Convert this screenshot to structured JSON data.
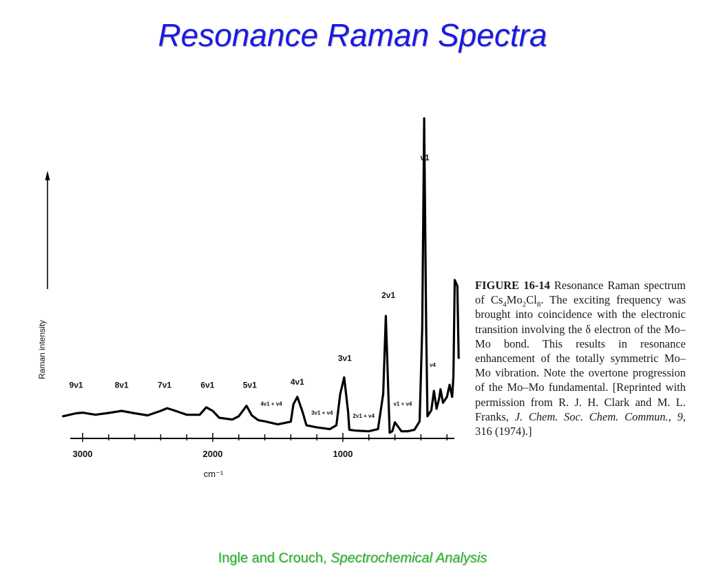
{
  "slide": {
    "title": "Resonance Raman Spectra",
    "footer_authors": "Ingle and Crouch, ",
    "footer_book": "Spectrochemical Analysis"
  },
  "caption": {
    "figure_label": "FIGURE 16-14",
    "text_1": "Resonance Raman spectrum of Cs",
    "sub_1": "4",
    "text_2": "Mo",
    "sub_2": "2",
    "text_3": "Cl",
    "sub_3": "8",
    "text_4": ". The exciting frequency was brought into coincidence with the electronic transition involving the δ electron of the Mo–Mo bond. This results in resonance enhancement of the totally symmetric Mo–Mo vibration. Note the overtone progression of the Mo–Mo fundamental. [Reprinted with permission from R. J. H. Clark and M. L. Franks, ",
    "journal": "J. Chem. Soc. Chem. Commun., 9,",
    "text_5": " 316 (1974).]"
  },
  "chart_data": {
    "type": "line",
    "title": "",
    "xlabel": "cm⁻¹",
    "ylabel": "Raman intensity",
    "x_tick_labels": [
      "3000",
      "2000",
      "1000"
    ],
    "x_ticks": [
      3000,
      2000,
      1000
    ],
    "xlim": [
      3150,
      100
    ],
    "x_reversed": true,
    "ylim": [
      0,
      100
    ],
    "grid": false,
    "series": [
      {
        "x": [
          3150,
          3050,
          3000,
          2900,
          2800,
          2700,
          2600,
          2500,
          2400,
          2350,
          2300,
          2200,
          2100,
          2050,
          2000,
          1950,
          1850,
          1800,
          1740,
          1700,
          1650,
          1600,
          1500,
          1400,
          1380,
          1350,
          1310,
          1280,
          1200,
          1100,
          1050,
          1020,
          990,
          960,
          950,
          900,
          800,
          730,
          690,
          670,
          650,
          640,
          620,
          600,
          550,
          500,
          450,
          410,
          390,
          375,
          360,
          350,
          320,
          300,
          280,
          260,
          250,
          230,
          200,
          180,
          160,
          150,
          140,
          120,
          110
        ],
        "y": [
          0.5,
          1.5,
          1.7,
          1.0,
          1.6,
          2.3,
          1.5,
          0.8,
          2.3,
          3.2,
          2.5,
          1.0,
          1.0,
          3.5,
          2.3,
          0.0,
          -0.6,
          0.5,
          4.0,
          0.8,
          -0.8,
          -1.2,
          -2.2,
          -1.3,
          4.5,
          7.0,
          2.0,
          -2.5,
          -3.2,
          -3.8,
          -2.5,
          8.0,
          13.5,
          2.0,
          -4.0,
          -4.3,
          -4.5,
          -3.8,
          8.0,
          34.0,
          8.0,
          -5.0,
          -4.5,
          -1.5,
          -4.5,
          -4.5,
          -4.0,
          -1.2,
          30.0,
          100.0,
          30.0,
          0.5,
          2.5,
          9.0,
          3.0,
          6.5,
          9.5,
          5.0,
          7.0,
          11.0,
          7.0,
          14.0,
          46.0,
          44.0,
          20.0
        ]
      }
    ],
    "annotations": [
      {
        "label": "ν1",
        "x": 370,
        "y": 86
      },
      {
        "label": "2ν1",
        "x": 650,
        "y": 40
      },
      {
        "label": "3ν1",
        "x": 985,
        "y": 19
      },
      {
        "label": "4ν1",
        "x": 1350,
        "y": 11
      },
      {
        "label": "5ν1",
        "x": 1715,
        "y": 10
      },
      {
        "label": "6ν1",
        "x": 2040,
        "y": 10
      },
      {
        "label": "7ν1",
        "x": 2370,
        "y": 10
      },
      {
        "label": "8ν1",
        "x": 2700,
        "y": 10
      },
      {
        "label": "9ν1",
        "x": 3050,
        "y": 10
      },
      {
        "label": "4ν1 + ν4",
        "x": 1550,
        "y": 4
      },
      {
        "label": "3ν1 + ν4",
        "x": 1160,
        "y": 1
      },
      {
        "label": "2ν1 + ν4",
        "x": 840,
        "y": 0
      },
      {
        "label": "ν1 + ν4",
        "x": 540,
        "y": 4
      },
      {
        "label": "ν4",
        "x": 310,
        "y": 17
      }
    ]
  }
}
